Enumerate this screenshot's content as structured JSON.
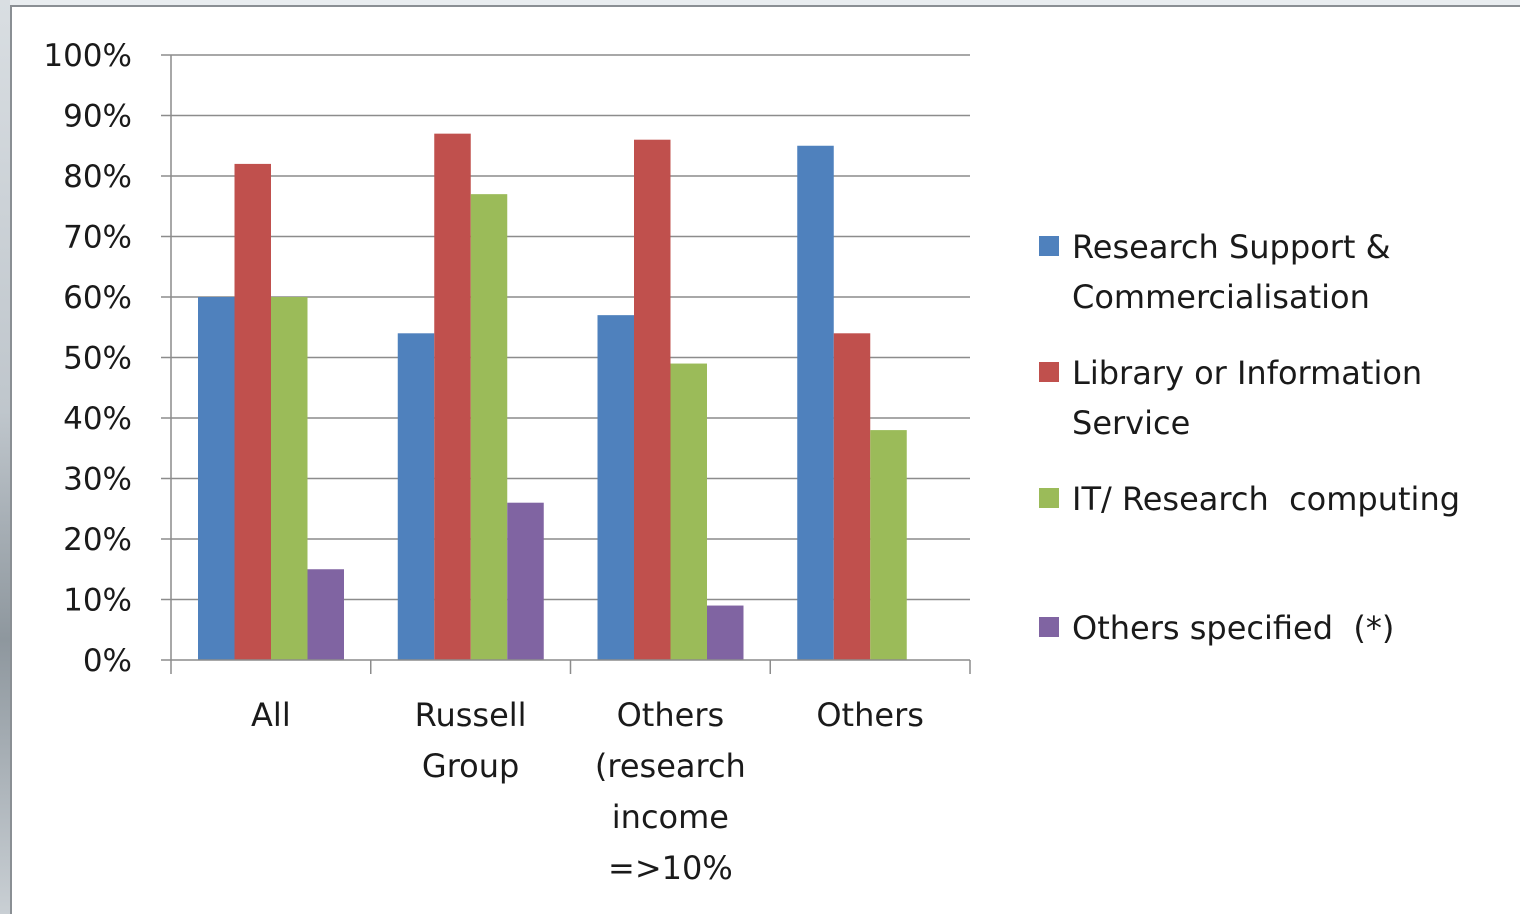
{
  "chart_data": {
    "type": "bar",
    "title": "",
    "xlabel": "",
    "ylabel": "",
    "ylim": [
      0,
      100
    ],
    "y_tick_labels": [
      "0%",
      "10%",
      "20%",
      "30%",
      "40%",
      "50%",
      "60%",
      "70%",
      "80%",
      "90%",
      "100%"
    ],
    "grid": true,
    "legend_position": "right",
    "categories": [
      [
        "All"
      ],
      [
        "Russell",
        "Group"
      ],
      [
        "Others",
        "(research",
        "income",
        "=>10%"
      ],
      [
        "Others"
      ]
    ],
    "series": [
      {
        "name": [
          "Research Support &",
          "Commercialisation"
        ],
        "color": "#4f81bd",
        "values": [
          60,
          54,
          57,
          85
        ]
      },
      {
        "name": [
          "Library or Information",
          "Service"
        ],
        "color": "#c0504d",
        "values": [
          82,
          87,
          86,
          54
        ]
      },
      {
        "name": [
          "IT/ Research  computing"
        ],
        "color": "#9bbb59",
        "values": [
          60,
          77,
          49,
          38
        ]
      },
      {
        "name": [
          "Others specified  (*)"
        ],
        "color": "#8064a2",
        "values": [
          15,
          26,
          9,
          null
        ]
      }
    ]
  }
}
